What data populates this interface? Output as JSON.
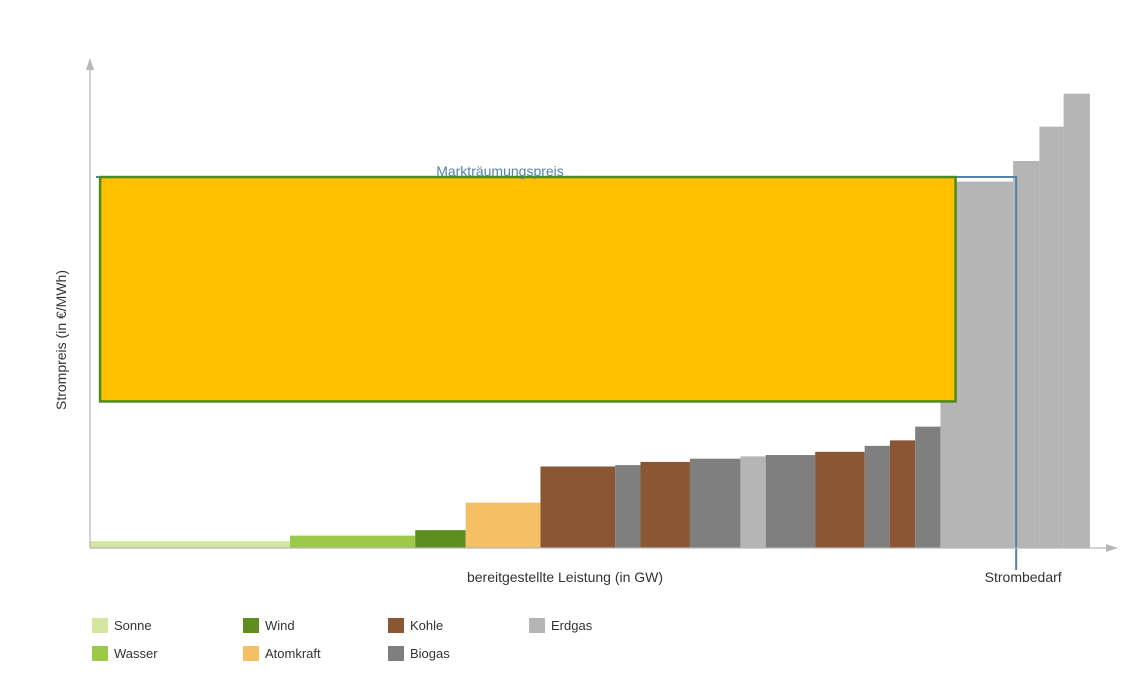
{
  "chart_data": {
    "type": "bar",
    "title": "",
    "ylabel": "Strompreis (in €/MWh)",
    "xlabel": "bereitgestellte Leistung (in GW)",
    "demand_label": "Strombedarf",
    "clearing_price_label": "Markträumungspreis",
    "clearing_price_value": 81,
    "demand_value": 917,
    "xlim": [
      0,
      1000
    ],
    "ylim": [
      0,
      100
    ],
    "bars": [
      {
        "source": "Sonne",
        "x0": 0,
        "x1": 198,
        "value": 1.5
      },
      {
        "source": "Wasser",
        "x0": 198,
        "x1": 322,
        "value": 2.7
      },
      {
        "source": "Wind",
        "x0": 322,
        "x1": 372,
        "value": 3.9
      },
      {
        "source": "Atomkraft",
        "x0": 372,
        "x1": 446,
        "value": 9.9
      },
      {
        "source": "Kohle",
        "x0": 446,
        "x1": 520,
        "value": 17.8
      },
      {
        "source": "Biogas",
        "x0": 520,
        "x1": 545,
        "value": 18.1
      },
      {
        "source": "Kohle",
        "x0": 545,
        "x1": 594,
        "value": 18.8
      },
      {
        "source": "Biogas",
        "x0": 594,
        "x1": 644,
        "value": 19.5
      },
      {
        "source": "Erdgas",
        "x0": 644,
        "x1": 669,
        "value": 20.0
      },
      {
        "source": "Biogas",
        "x0": 669,
        "x1": 718,
        "value": 20.3
      },
      {
        "source": "Kohle",
        "x0": 718,
        "x1": 767,
        "value": 21.0
      },
      {
        "source": "Biogas",
        "x0": 767,
        "x1": 792,
        "value": 22.3
      },
      {
        "source": "Kohle",
        "x0": 792,
        "x1": 817,
        "value": 23.5
      },
      {
        "source": "Biogas",
        "x0": 817,
        "x1": 842,
        "value": 26.5
      },
      {
        "source": "Erdgas",
        "x0": 842,
        "x1": 914,
        "value": 80.0
      },
      {
        "source": "Erdgas",
        "x0": 914,
        "x1": 940,
        "value": 84.5
      },
      {
        "source": "Erdgas",
        "x0": 940,
        "x1": 964,
        "value": 92.0
      },
      {
        "source": "Erdgas",
        "x0": 964,
        "x1": 990,
        "value": 99.2
      }
    ],
    "legend": [
      {
        "name": "Sonne",
        "color": "#d4e6a1"
      },
      {
        "name": "Wasser",
        "color": "#9cc94a"
      },
      {
        "name": "Wind",
        "color": "#5e8e1f"
      },
      {
        "name": "Atomkraft",
        "color": "#f5bf66"
      },
      {
        "name": "Kohle",
        "color": "#8a5634"
      },
      {
        "name": "Biogas",
        "color": "#7f7f7f"
      },
      {
        "name": "Erdgas",
        "color": "#b5b5b5"
      }
    ],
    "highlight_box": {
      "fill": "#ffc000",
      "stroke": "#4f8a1e",
      "x0": 10,
      "x1": 857,
      "y0": 32,
      "y1": 81
    },
    "colors": {
      "axis": "#b8b8b8",
      "price_line": "#5583a6",
      "label_text": "#5583a6",
      "text": "#333333"
    }
  }
}
